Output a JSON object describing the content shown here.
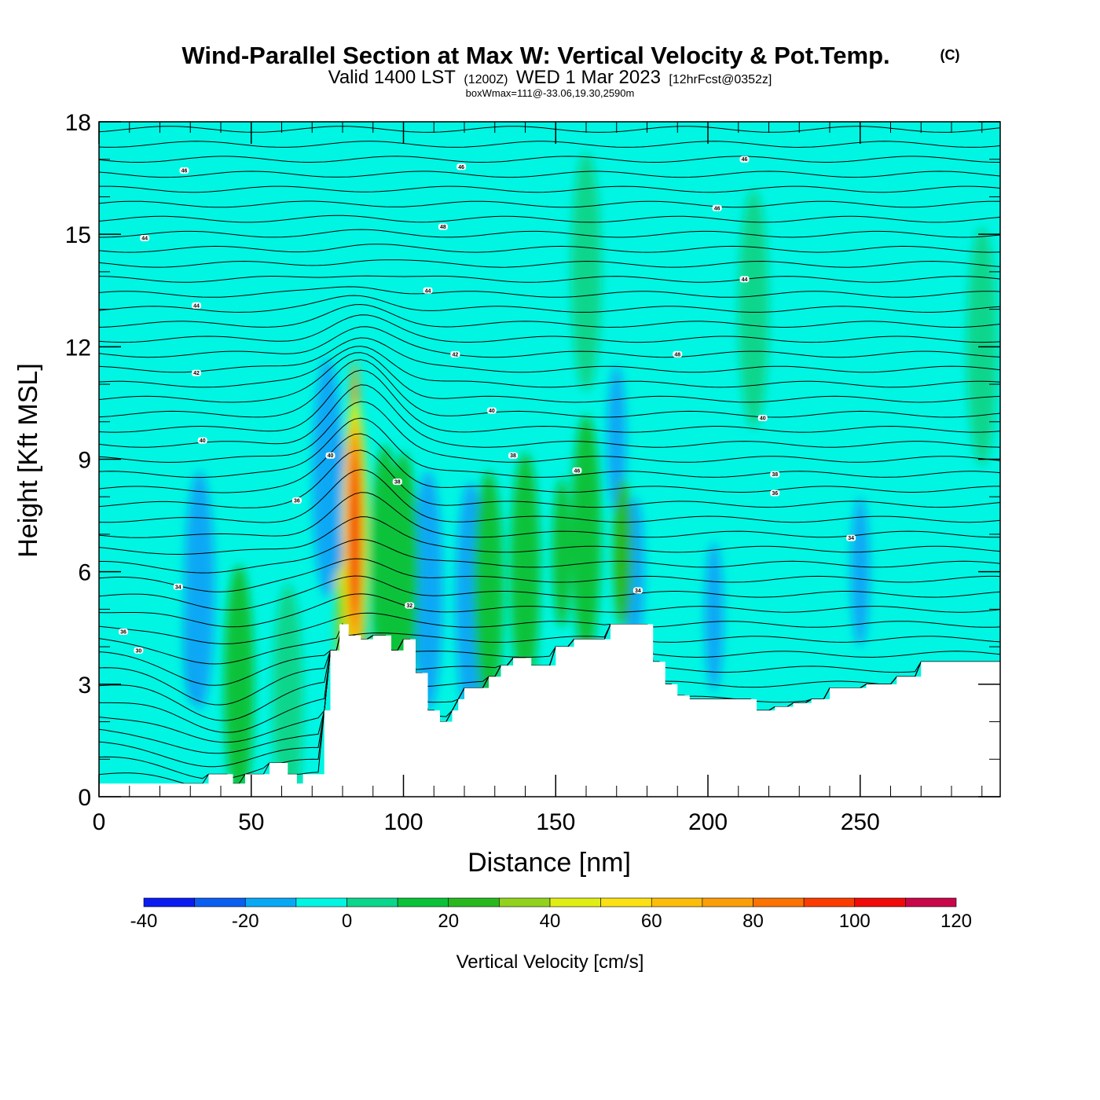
{
  "title": {
    "main": "Wind-Parallel Section at Max W: Vertical Velocity & Pot.Temp.",
    "copyright": "(C)",
    "valid_prefix": "Valid 1400 LST",
    "valid_zulu": "(1200Z)",
    "valid_date": "WED 1 Mar 2023",
    "forecast": "[12hrFcst@0352z]",
    "boxwmax": "boxWmax=111@-33.06,19.30,2590m"
  },
  "colors": {
    "neg40": "#0a1cf0",
    "neg30": "#0a5ef0",
    "neg20": "#08a8f5",
    "neg10": "#00f5e3",
    "pos0": "#0ad68c",
    "pos10": "#0ac23a",
    "pos20": "#28b81e",
    "pos30": "#92d21e",
    "pos40": "#e0ee14",
    "pos50": "#fbe114",
    "pos60": "#fbbd0a",
    "pos70": "#fb9e0a",
    "pos80": "#fb7300",
    "pos90": "#fa3c00",
    "pos100": "#f00a0a",
    "pos110": "#c8064a",
    "terrain": "#ffffff",
    "contour": "#000000"
  },
  "chart_data": {
    "type": "heatmap",
    "title": "Wind-Parallel Section at Max W: Vertical Velocity & Pot.Temp.",
    "xlabel": "Distance [nm]",
    "ylabel": "Height [Kft MSL]",
    "xlim": [
      0,
      296
    ],
    "ylim": [
      0,
      18
    ],
    "x_ticks": [
      "0",
      "50",
      "100",
      "150",
      "200",
      "250"
    ],
    "x_tick_values": [
      0,
      50,
      100,
      150,
      200,
      250
    ],
    "y_ticks": [
      "0",
      "3",
      "6",
      "9",
      "12",
      "15",
      "18"
    ],
    "y_tick_values": [
      0,
      3,
      6,
      9,
      12,
      15,
      18
    ],
    "colorbar": {
      "label": "Vertical Velocity [cm/s]",
      "tick_labels": [
        "-40",
        "-20",
        "0",
        "20",
        "40",
        "60",
        "80",
        "100",
        "120"
      ],
      "levels": [
        -40,
        -30,
        -20,
        -10,
        0,
        10,
        20,
        30,
        40,
        50,
        60,
        70,
        80,
        90,
        100,
        110,
        120
      ]
    },
    "terrain_profile": {
      "x": [
        0,
        30,
        36,
        44,
        48,
        56,
        62,
        65,
        67,
        70,
        74,
        76,
        79,
        82,
        86,
        90,
        96,
        100,
        104,
        108,
        112,
        116,
        118,
        120,
        124,
        128,
        132,
        136,
        142,
        150,
        156,
        162,
        168,
        176,
        182,
        186,
        190,
        194,
        200,
        210,
        216,
        222,
        228,
        234,
        240,
        252,
        262,
        270,
        296
      ],
      "height": [
        0.35,
        0.35,
        0.6,
        0.35,
        0.6,
        0.9,
        0.6,
        0.35,
        0.6,
        0.6,
        2.3,
        3.9,
        4.6,
        4.3,
        4.2,
        4.3,
        3.9,
        4.2,
        3.3,
        2.3,
        2.0,
        2.3,
        2.6,
        2.9,
        2.9,
        3.2,
        3.5,
        3.7,
        3.5,
        4.0,
        4.2,
        4.2,
        4.6,
        4.6,
        3.6,
        3.0,
        2.7,
        2.6,
        2.6,
        2.6,
        2.3,
        2.4,
        2.5,
        2.6,
        2.9,
        3.0,
        3.2,
        3.6,
        3.6
      ]
    },
    "velocity_cells": [
      {
        "x": 86,
        "y": 6.5,
        "value": 105
      },
      {
        "x": 84,
        "y": 8.5,
        "value": 75
      },
      {
        "x": 80,
        "y": 6.8,
        "value": 45
      },
      {
        "x": 81,
        "y": 4.5,
        "value": 35
      },
      {
        "x": 78,
        "y": 8.0,
        "value": -30
      },
      {
        "x": 75,
        "y": 8.5,
        "value": -15
      },
      {
        "x": 31,
        "y": 4.5,
        "value": -25
      },
      {
        "x": 33,
        "y": 5.5,
        "value": -15
      },
      {
        "x": 170,
        "y": 9.5,
        "value": -20
      },
      {
        "x": 176,
        "y": 6.0,
        "value": -20
      },
      {
        "x": 202,
        "y": 4.8,
        "value": -20
      },
      {
        "x": 250,
        "y": 6.0,
        "value": -20
      },
      {
        "x": 108,
        "y": 5.5,
        "value": -15
      },
      {
        "x": 122,
        "y": 5.2,
        "value": -15
      },
      {
        "x": 172,
        "y": 6.5,
        "value": 25
      },
      {
        "x": 94,
        "y": 6.2,
        "value": 15
      },
      {
        "x": 100,
        "y": 6.0,
        "value": 15
      },
      {
        "x": 128,
        "y": 5.5,
        "value": 12
      },
      {
        "x": 140,
        "y": 6.0,
        "value": 15
      },
      {
        "x": 152,
        "y": 6.5,
        "value": 18
      },
      {
        "x": 160,
        "y": 7.0,
        "value": 15
      },
      {
        "x": 46,
        "y": 3.0,
        "value": 10
      },
      {
        "x": 62,
        "y": 2.5,
        "value": 8
      },
      {
        "x": 160,
        "y": 14.0,
        "value": 5
      },
      {
        "x": 215,
        "y": 13.0,
        "value": 5
      },
      {
        "x": 290,
        "y": 12.0,
        "value": 5
      }
    ],
    "theta_contours": {
      "units": "K",
      "labels": [
        {
          "x": 28,
          "y": 16.7,
          "text": "46"
        },
        {
          "x": 119,
          "y": 16.8,
          "text": "46"
        },
        {
          "x": 212,
          "y": 17.0,
          "text": "46"
        },
        {
          "x": 15,
          "y": 14.9,
          "text": "44"
        },
        {
          "x": 113,
          "y": 15.2,
          "text": "48"
        },
        {
          "x": 203,
          "y": 15.7,
          "text": "46"
        },
        {
          "x": 32,
          "y": 13.1,
          "text": "44"
        },
        {
          "x": 108,
          "y": 13.5,
          "text": "44"
        },
        {
          "x": 212,
          "y": 13.8,
          "text": "44"
        },
        {
          "x": 32,
          "y": 11.3,
          "text": "42"
        },
        {
          "x": 117,
          "y": 11.8,
          "text": "42"
        },
        {
          "x": 190,
          "y": 11.8,
          "text": "48"
        },
        {
          "x": 34,
          "y": 9.5,
          "text": "40"
        },
        {
          "x": 129,
          "y": 10.3,
          "text": "40"
        },
        {
          "x": 218,
          "y": 10.1,
          "text": "40"
        },
        {
          "x": 76,
          "y": 9.1,
          "text": "40"
        },
        {
          "x": 136,
          "y": 9.1,
          "text": "38"
        },
        {
          "x": 157,
          "y": 8.7,
          "text": "46"
        },
        {
          "x": 98,
          "y": 8.4,
          "text": "38"
        },
        {
          "x": 222,
          "y": 8.6,
          "text": "38"
        },
        {
          "x": 222,
          "y": 8.1,
          "text": "36"
        },
        {
          "x": 65,
          "y": 7.9,
          "text": "36"
        },
        {
          "x": 247,
          "y": 6.9,
          "text": "34"
        },
        {
          "x": 26,
          "y": 5.6,
          "text": "34"
        },
        {
          "x": 102,
          "y": 5.1,
          "text": "32"
        },
        {
          "x": 177,
          "y": 5.5,
          "text": "34"
        },
        {
          "x": 8,
          "y": 4.4,
          "text": "36"
        },
        {
          "x": 13,
          "y": 3.9,
          "text": "30"
        }
      ]
    }
  }
}
